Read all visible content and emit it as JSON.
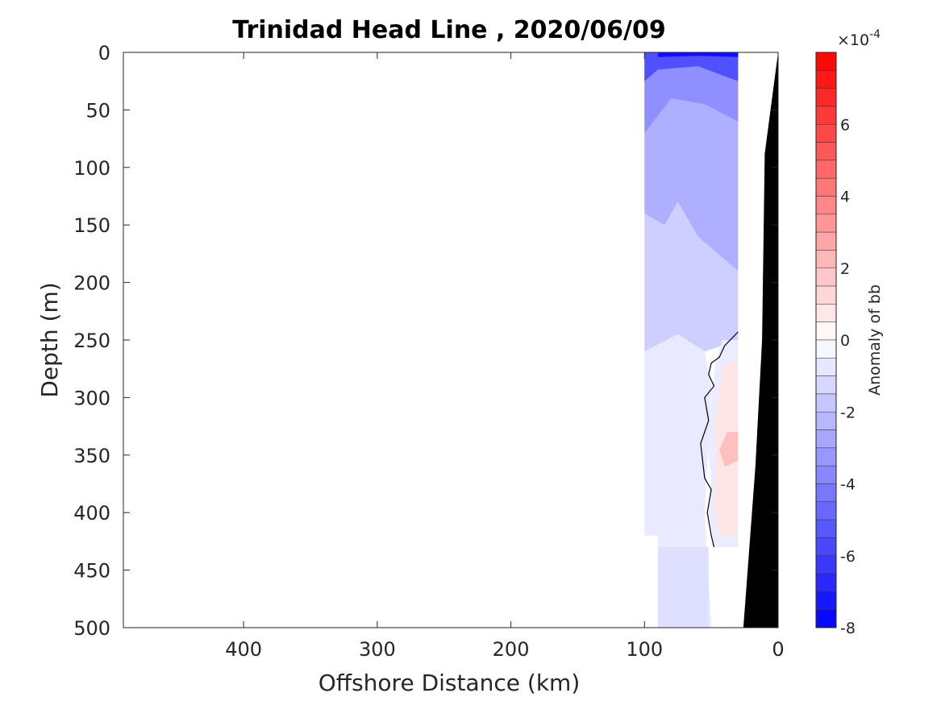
{
  "chart_data": {
    "type": "heatmap",
    "title": "Trinidad Head Line , 2020/06/09",
    "xlabel": "Offshore Distance (km)",
    "ylabel": "Depth (m)",
    "xlim": [
      490,
      0
    ],
    "ylim": [
      0,
      500
    ],
    "x_reversed": true,
    "y_reversed": true,
    "x_ticks": [
      400,
      300,
      200,
      100,
      0
    ],
    "y_ticks": [
      0,
      50,
      100,
      150,
      200,
      250,
      300,
      350,
      400,
      450,
      500
    ],
    "colorbar": {
      "label": "Anomaly of bb",
      "exponent_label": "×10",
      "exponent_value": "-4",
      "range": [
        -8,
        8
      ],
      "ticks": [
        6,
        4,
        2,
        0,
        -2,
        -4,
        -6,
        -8
      ],
      "levels": 32,
      "colors": {
        "negative": "#0000ff",
        "zero": "#ffffff",
        "positive": "#ff0000"
      }
    },
    "bathymetry_color": "#000000",
    "bathymetry_profile": [
      [
        0,
        0
      ],
      [
        10,
        88
      ],
      [
        12,
        250
      ],
      [
        17,
        360
      ],
      [
        26,
        500
      ]
    ],
    "data_coverage": {
      "x_min_km": 30,
      "x_max_km": 100,
      "depth_max_m": 500
    },
    "field_regions": [
      {
        "value": -1.5,
        "polygon": [
          [
            100,
            0
          ],
          [
            30,
            0
          ],
          [
            30,
            250
          ],
          [
            55,
            260
          ],
          [
            75,
            245
          ],
          [
            100,
            260
          ]
        ]
      },
      {
        "value": -0.7,
        "polygon": [
          [
            100,
            260
          ],
          [
            75,
            245
          ],
          [
            55,
            260
          ],
          [
            50,
            290
          ],
          [
            55,
            400
          ],
          [
            50,
            500
          ],
          [
            90,
            500
          ],
          [
            90,
            420
          ],
          [
            100,
            420
          ]
        ]
      },
      {
        "value": -2.5,
        "polygon": [
          [
            100,
            0
          ],
          [
            30,
            0
          ],
          [
            30,
            190
          ],
          [
            60,
            160
          ],
          [
            75,
            130
          ],
          [
            85,
            150
          ],
          [
            100,
            140
          ]
        ]
      },
      {
        "value": -3.5,
        "polygon": [
          [
            100,
            0
          ],
          [
            30,
            0
          ],
          [
            30,
            60
          ],
          [
            55,
            45
          ],
          [
            80,
            40
          ],
          [
            100,
            70
          ]
        ]
      },
      {
        "value": -5.5,
        "polygon": [
          [
            100,
            0
          ],
          [
            30,
            0
          ],
          [
            30,
            25
          ],
          [
            60,
            12
          ],
          [
            90,
            15
          ],
          [
            100,
            25
          ]
        ]
      },
      {
        "value": -7.5,
        "polygon": [
          [
            90,
            0
          ],
          [
            30,
            0
          ],
          [
            30,
            4
          ],
          [
            60,
            3
          ],
          [
            90,
            4
          ]
        ]
      },
      {
        "value": -1.0,
        "polygon": [
          [
            90,
            430
          ],
          [
            52,
            430
          ],
          [
            52,
            500
          ],
          [
            90,
            500
          ]
        ]
      },
      {
        "value": -0.6,
        "polygon": [
          [
            42,
            250
          ],
          [
            30,
            250
          ],
          [
            30,
            430
          ],
          [
            48,
            430
          ],
          [
            52,
            400
          ],
          [
            50,
            370
          ],
          [
            53,
            340
          ],
          [
            50,
            300
          ],
          [
            47,
            270
          ]
        ]
      },
      {
        "value": 0.8,
        "polygon": [
          [
            40,
            270
          ],
          [
            30,
            270
          ],
          [
            30,
            420
          ],
          [
            44,
            420
          ],
          [
            48,
            395
          ],
          [
            46,
            360
          ],
          [
            48,
            330
          ],
          [
            45,
            300
          ]
        ]
      },
      {
        "value": 2.0,
        "polygon": [
          [
            38,
            330
          ],
          [
            30,
            330
          ],
          [
            30,
            355
          ],
          [
            40,
            360
          ],
          [
            44,
            345
          ]
        ]
      }
    ],
    "zero_contour": [
      [
        30,
        243
      ],
      [
        40,
        255
      ],
      [
        44,
        265
      ],
      [
        50,
        270
      ],
      [
        52,
        280
      ],
      [
        48,
        290
      ],
      [
        55,
        300
      ],
      [
        52,
        320
      ],
      [
        58,
        340
      ],
      [
        55,
        370
      ],
      [
        50,
        380
      ],
      [
        53,
        400
      ],
      [
        50,
        420
      ],
      [
        48,
        430
      ]
    ]
  }
}
